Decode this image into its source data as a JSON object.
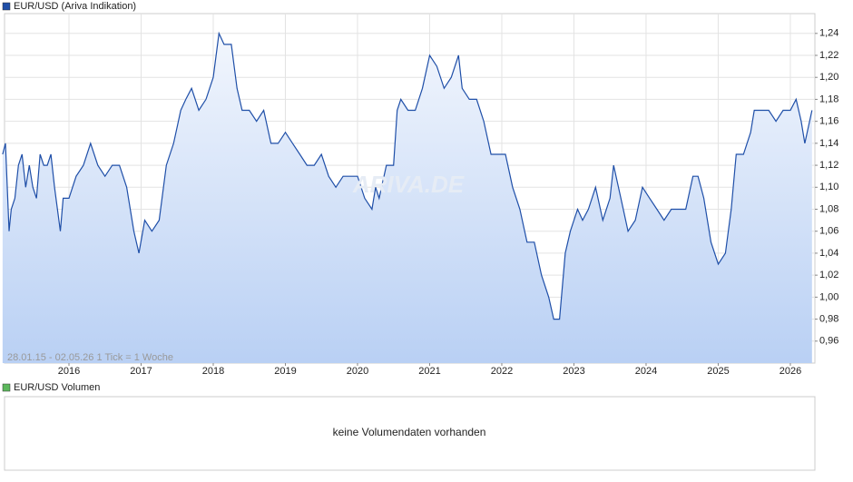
{
  "chart_data": {
    "type": "area-line",
    "title": "EUR/USD (Ariva Indikation)",
    "range_note": "28.01.15 - 02.05.26   1 Tick = 1 Woche",
    "watermark": "ARIVA.DE",
    "color": "#1f4fa8",
    "grid": true,
    "x": [
      2015.08,
      2015.12,
      2015.17,
      2015.2,
      2015.25,
      2015.3,
      2015.35,
      2015.4,
      2015.45,
      2015.5,
      2015.55,
      2015.6,
      2015.65,
      2015.7,
      2015.75,
      2015.8,
      2015.88,
      2015.92,
      2016.0,
      2016.1,
      2016.2,
      2016.3,
      2016.4,
      2016.5,
      2016.6,
      2016.7,
      2016.8,
      2016.9,
      2016.97,
      2017.05,
      2017.15,
      2017.25,
      2017.35,
      2017.45,
      2017.55,
      2017.62,
      2017.7,
      2017.8,
      2017.9,
      2018.0,
      2018.08,
      2018.15,
      2018.25,
      2018.33,
      2018.4,
      2018.5,
      2018.6,
      2018.7,
      2018.8,
      2018.9,
      2019.0,
      2019.1,
      2019.2,
      2019.3,
      2019.4,
      2019.5,
      2019.6,
      2019.7,
      2019.8,
      2019.9,
      2020.0,
      2020.1,
      2020.2,
      2020.25,
      2020.3,
      2020.4,
      2020.5,
      2020.55,
      2020.6,
      2020.7,
      2020.8,
      2020.9,
      2021.0,
      2021.1,
      2021.2,
      2021.3,
      2021.4,
      2021.45,
      2021.55,
      2021.65,
      2021.75,
      2021.85,
      2021.95,
      2022.05,
      2022.15,
      2022.25,
      2022.35,
      2022.45,
      2022.55,
      2022.65,
      2022.72,
      2022.8,
      2022.88,
      2022.95,
      2023.05,
      2023.12,
      2023.2,
      2023.3,
      2023.4,
      2023.5,
      2023.55,
      2023.65,
      2023.75,
      2023.85,
      2023.95,
      2024.05,
      2024.15,
      2024.25,
      2024.35,
      2024.45,
      2024.55,
      2024.65,
      2024.72,
      2024.8,
      2024.9,
      2025.0,
      2025.1,
      2025.18,
      2025.25,
      2025.35,
      2025.45,
      2025.5,
      2025.6,
      2025.7,
      2025.8,
      2025.9,
      2026.0,
      2026.08,
      2026.15,
      2026.2,
      2026.3
    ],
    "values": [
      1.13,
      1.14,
      1.06,
      1.08,
      1.09,
      1.12,
      1.13,
      1.1,
      1.12,
      1.1,
      1.09,
      1.13,
      1.12,
      1.12,
      1.13,
      1.1,
      1.06,
      1.09,
      1.09,
      1.11,
      1.12,
      1.14,
      1.12,
      1.11,
      1.12,
      1.12,
      1.1,
      1.06,
      1.04,
      1.07,
      1.06,
      1.07,
      1.12,
      1.14,
      1.17,
      1.18,
      1.19,
      1.17,
      1.18,
      1.2,
      1.24,
      1.23,
      1.23,
      1.19,
      1.17,
      1.17,
      1.16,
      1.17,
      1.14,
      1.14,
      1.15,
      1.14,
      1.13,
      1.12,
      1.12,
      1.13,
      1.11,
      1.1,
      1.11,
      1.11,
      1.11,
      1.09,
      1.08,
      1.1,
      1.09,
      1.12,
      1.12,
      1.17,
      1.18,
      1.17,
      1.17,
      1.19,
      1.22,
      1.21,
      1.19,
      1.2,
      1.22,
      1.19,
      1.18,
      1.18,
      1.16,
      1.13,
      1.13,
      1.13,
      1.1,
      1.08,
      1.05,
      1.05,
      1.02,
      1.0,
      0.98,
      0.98,
      1.04,
      1.06,
      1.08,
      1.07,
      1.08,
      1.1,
      1.07,
      1.09,
      1.12,
      1.09,
      1.06,
      1.07,
      1.1,
      1.09,
      1.08,
      1.07,
      1.08,
      1.08,
      1.08,
      1.11,
      1.11,
      1.09,
      1.05,
      1.03,
      1.04,
      1.08,
      1.13,
      1.13,
      1.15,
      1.17,
      1.17,
      1.17,
      1.16,
      1.17,
      1.17,
      1.18,
      1.16,
      1.14,
      1.17
    ],
    "xlim": [
      2015.107,
      2026.34
    ],
    "xticks": [
      2016,
      2017,
      2018,
      2019,
      2020,
      2021,
      2022,
      2023,
      2024,
      2025,
      2026
    ],
    "ylim": [
      0.94,
      1.258
    ],
    "yticks": [
      {
        "value": 0.96,
        "label": "0,96"
      },
      {
        "value": 0.98,
        "label": "0,98"
      },
      {
        "value": 1.0,
        "label": "1,00"
      },
      {
        "value": 1.02,
        "label": "1,02"
      },
      {
        "value": 1.04,
        "label": "1,04"
      },
      {
        "value": 1.06,
        "label": "1,06"
      },
      {
        "value": 1.08,
        "label": "1,08"
      },
      {
        "value": 1.1,
        "label": "1,10"
      },
      {
        "value": 1.12,
        "label": "1,12"
      },
      {
        "value": 1.14,
        "label": "1,14"
      },
      {
        "value": 1.16,
        "label": "1,16"
      },
      {
        "value": 1.18,
        "label": "1,18"
      },
      {
        "value": 1.2,
        "label": "1,20"
      },
      {
        "value": 1.22,
        "label": "1,22"
      },
      {
        "value": 1.24,
        "label": "1,24"
      }
    ]
  },
  "volume_panel": {
    "title": "EUR/USD Volumen",
    "message": "keine Volumendaten vorhanden"
  }
}
